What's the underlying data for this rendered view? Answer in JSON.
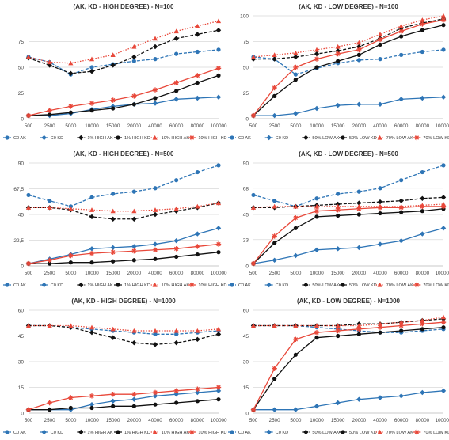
{
  "chart_data": [
    {
      "type": "line",
      "title": "(AK, KD - HIGH DEGREE) - N=100",
      "categories": [
        "500",
        "2500",
        "5000",
        "10000",
        "15000",
        "20000",
        "40000",
        "60000",
        "80000",
        "100000"
      ],
      "ylim": [
        0,
        100
      ],
      "yticks": [
        "0",
        "25",
        "50",
        "75"
      ],
      "ytick_values": [
        0,
        25,
        50,
        75
      ],
      "grid": true,
      "legend_position": "bottom",
      "series": [
        {
          "name": "C0 AK",
          "color": "#2e75b6",
          "dash": "dash",
          "marker": "circle",
          "values": [
            60,
            55,
            43,
            50,
            53,
            56,
            58,
            63,
            65,
            67
          ]
        },
        {
          "name": "C0 KD",
          "color": "#2e75b6",
          "dash": "solid",
          "marker": "diamond",
          "values": [
            3,
            3,
            5,
            9,
            12,
            14,
            15,
            19,
            20,
            21
          ]
        },
        {
          "name": "1% HIGH AK",
          "color": "#111111",
          "dash": "dash",
          "marker": "diamond",
          "values": [
            59,
            52,
            44,
            46,
            52,
            60,
            70,
            78,
            82,
            86
          ]
        },
        {
          "name": "1% HIGH KD",
          "color": "#111111",
          "dash": "solid",
          "marker": "circle",
          "values": [
            3,
            4,
            6,
            8,
            10,
            14,
            20,
            27,
            35,
            42
          ]
        },
        {
          "name": "10% HIGH AK",
          "color": "#e8483a",
          "dash": "dot",
          "marker": "triangle",
          "values": [
            60,
            55,
            54,
            58,
            62,
            70,
            78,
            85,
            90,
            95
          ]
        },
        {
          "name": "10% HIGH KD",
          "color": "#e8483a",
          "dash": "solid",
          "marker": "star",
          "values": [
            3,
            8,
            12,
            15,
            18,
            22,
            28,
            35,
            42,
            49
          ]
        }
      ]
    },
    {
      "type": "line",
      "title": "(AK, KD - LOW DEGREE) - N=100",
      "categories": [
        "500",
        "2500",
        "5000",
        "10000",
        "15000",
        "20000",
        "40000",
        "60000",
        "80000",
        "100000"
      ],
      "ylim": [
        0,
        100
      ],
      "yticks": [
        "0",
        "25",
        "50",
        "75",
        "100"
      ],
      "ytick_values": [
        0,
        25,
        50,
        75,
        100
      ],
      "grid": true,
      "legend_position": "bottom",
      "series": [
        {
          "name": "C0 AK",
          "color": "#2e75b6",
          "dash": "dash",
          "marker": "circle",
          "values": [
            60,
            58,
            43,
            49,
            54,
            57,
            58,
            62,
            65,
            67
          ]
        },
        {
          "name": "C0 KD",
          "color": "#2e75b6",
          "dash": "solid",
          "marker": "diamond",
          "values": [
            3,
            3,
            5,
            10,
            13,
            14,
            14,
            19,
            20,
            21
          ]
        },
        {
          "name": "50% LOW AK",
          "color": "#111111",
          "dash": "dash",
          "marker": "diamond",
          "values": [
            58,
            58,
            60,
            63,
            66,
            70,
            78,
            88,
            93,
            97
          ]
        },
        {
          "name": "50% LOW KD",
          "color": "#111111",
          "dash": "solid",
          "marker": "circle",
          "values": [
            3,
            22,
            38,
            50,
            56,
            62,
            72,
            80,
            86,
            91
          ]
        },
        {
          "name": "70% LOW AK",
          "color": "#e8483a",
          "dash": "dot",
          "marker": "triangle",
          "values": [
            60,
            62,
            64,
            67,
            70,
            74,
            82,
            90,
            96,
            100
          ]
        },
        {
          "name": "70% LOW KD",
          "color": "#e8483a",
          "dash": "solid",
          "marker": "star",
          "values": [
            3,
            30,
            50,
            58,
            63,
            67,
            77,
            85,
            92,
            96
          ]
        }
      ]
    },
    {
      "type": "line",
      "title": "(AK, KD - HIGH DEGREE) - N=500",
      "categories": [
        "500",
        "2500",
        "5000",
        "10000",
        "15000",
        "20000",
        "40000",
        "60000",
        "80000",
        "100000"
      ],
      "ylim": [
        0,
        90
      ],
      "yticks": [
        "0",
        "22,5",
        "45",
        "67,5",
        "90"
      ],
      "ytick_values": [
        0,
        22.5,
        45,
        67.5,
        90
      ],
      "grid": true,
      "legend_position": "bottom",
      "series": [
        {
          "name": "C0 AK",
          "color": "#2e75b6",
          "dash": "dash",
          "marker": "circle",
          "values": [
            62,
            57,
            52,
            60,
            63,
            65,
            68,
            75,
            82,
            88
          ]
        },
        {
          "name": "C0 KD",
          "color": "#2e75b6",
          "dash": "solid",
          "marker": "diamond",
          "values": [
            2,
            6,
            10,
            15,
            16,
            17,
            19,
            22,
            28,
            33
          ]
        },
        {
          "name": "1% HIGH AK",
          "color": "#111111",
          "dash": "dash",
          "marker": "diamond",
          "values": [
            51,
            51,
            49,
            43,
            41,
            41,
            45,
            48,
            51,
            55
          ]
        },
        {
          "name": "1% HIGH KD",
          "color": "#111111",
          "dash": "solid",
          "marker": "circle",
          "values": [
            2,
            2,
            3,
            3,
            4,
            5,
            6,
            8,
            10,
            12
          ]
        },
        {
          "name": "10% HIGH AK",
          "color": "#e8483a",
          "dash": "dot",
          "marker": "triangle",
          "values": [
            51,
            51,
            50,
            49,
            48,
            48,
            49,
            50,
            52,
            55
          ]
        },
        {
          "name": "10% HIGH KD",
          "color": "#e8483a",
          "dash": "solid",
          "marker": "star",
          "values": [
            2,
            5,
            9,
            11,
            12,
            13,
            14,
            15,
            17,
            19
          ]
        }
      ]
    },
    {
      "type": "line",
      "title": "(AK, KD - LOW DEGREE) - N=500",
      "categories": [
        "500",
        "2500",
        "5000",
        "10000",
        "15000",
        "20000",
        "40000",
        "60000",
        "80000",
        "100000"
      ],
      "ylim": [
        0,
        90
      ],
      "yticks": [
        "0",
        "23",
        "45",
        "68",
        "90"
      ],
      "ytick_values": [
        0,
        23,
        45,
        68,
        90
      ],
      "grid": true,
      "legend_position": "bottom",
      "series": [
        {
          "name": "C0 AK",
          "color": "#2e75b6",
          "dash": "dash",
          "marker": "circle",
          "values": [
            62,
            57,
            52,
            59,
            63,
            65,
            68,
            75,
            82,
            88
          ]
        },
        {
          "name": "C0 KD",
          "color": "#2e75b6",
          "dash": "solid",
          "marker": "diamond",
          "values": [
            2,
            5,
            9,
            14,
            15,
            16,
            19,
            22,
            28,
            33
          ]
        },
        {
          "name": "50% LOW AK",
          "color": "#111111",
          "dash": "dash",
          "marker": "diamond",
          "values": [
            51,
            51,
            52,
            53,
            54,
            55,
            56,
            57,
            59,
            60
          ]
        },
        {
          "name": "50% LOW KD",
          "color": "#111111",
          "dash": "solid",
          "marker": "circle",
          "values": [
            2,
            20,
            33,
            43,
            44,
            45,
            46,
            47,
            48,
            50
          ]
        },
        {
          "name": "70% LOW AK",
          "color": "#e8483a",
          "dash": "dot",
          "marker": "triangle",
          "values": [
            51,
            52,
            52,
            52,
            52,
            52,
            52,
            52,
            53,
            54
          ]
        },
        {
          "name": "70% LOW KD",
          "color": "#e8483a",
          "dash": "solid",
          "marker": "star",
          "values": [
            2,
            26,
            42,
            48,
            49,
            50,
            51,
            51,
            52,
            52
          ]
        }
      ]
    },
    {
      "type": "line",
      "title": "(AK, KD - HIGH DEGREE) - N=1000",
      "categories": [
        "500",
        "2500",
        "5000",
        "10000",
        "15000",
        "20000",
        "40000",
        "60000",
        "80000",
        "100000"
      ],
      "ylim": [
        0,
        60
      ],
      "yticks": [
        "0",
        "15",
        "30",
        "45",
        "60"
      ],
      "ytick_values": [
        0,
        15,
        30,
        45,
        60
      ],
      "grid": true,
      "legend_position": "bottom",
      "series": [
        {
          "name": "C0 AK",
          "color": "#2e75b6",
          "dash": "dash",
          "marker": "circle",
          "values": [
            51,
            51,
            50,
            49,
            48,
            47,
            46,
            46,
            47,
            48
          ]
        },
        {
          "name": "C0 KD",
          "color": "#2e75b6",
          "dash": "solid",
          "marker": "diamond",
          "values": [
            2,
            2,
            2,
            5,
            7,
            8,
            10,
            11,
            12,
            13
          ]
        },
        {
          "name": "1% HIGH AK",
          "color": "#111111",
          "dash": "dash",
          "marker": "diamond",
          "values": [
            51,
            51,
            50,
            47,
            44,
            41,
            40,
            41,
            43,
            46
          ]
        },
        {
          "name": "1% HIGH KD",
          "color": "#111111",
          "dash": "solid",
          "marker": "circle",
          "values": [
            2,
            2,
            3,
            3,
            4,
            4,
            5,
            6,
            7,
            8
          ]
        },
        {
          "name": "10% HIGH AK",
          "color": "#e8483a",
          "dash": "dot",
          "marker": "triangle",
          "values": [
            51,
            51,
            51,
            50,
            49,
            48,
            48,
            48,
            48,
            49
          ]
        },
        {
          "name": "10% HIGH KD",
          "color": "#e8483a",
          "dash": "solid",
          "marker": "star",
          "values": [
            2,
            6,
            9,
            10,
            11,
            11,
            12,
            13,
            14,
            15
          ]
        }
      ]
    },
    {
      "type": "line",
      "title": "(AK, KD - LOW DEGREE) - N=1000",
      "categories": [
        "500",
        "2500",
        "5000",
        "10000",
        "15000",
        "20000",
        "40000",
        "60000",
        "80000",
        "100000"
      ],
      "ylim": [
        0,
        60
      ],
      "yticks": [
        "0",
        "15",
        "30",
        "45",
        "60"
      ],
      "ytick_values": [
        0,
        15,
        30,
        45,
        60
      ],
      "grid": true,
      "legend_position": "bottom",
      "series": [
        {
          "name": "C0 AK",
          "color": "#2e75b6",
          "dash": "dash",
          "marker": "circle",
          "values": [
            51,
            51,
            51,
            50,
            49,
            48,
            47,
            47,
            48,
            49
          ]
        },
        {
          "name": "C0 KD",
          "color": "#2e75b6",
          "dash": "solid",
          "marker": "diamond",
          "values": [
            2,
            2,
            2,
            4,
            6,
            8,
            9,
            10,
            12,
            13
          ]
        },
        {
          "name": "50% LOW AK",
          "color": "#111111",
          "dash": "dash",
          "marker": "diamond",
          "values": [
            51,
            51,
            51,
            51,
            51,
            52,
            52,
            53,
            54,
            55
          ]
        },
        {
          "name": "50% LOW KD",
          "color": "#111111",
          "dash": "solid",
          "marker": "circle",
          "values": [
            2,
            20,
            34,
            44,
            45,
            46,
            47,
            48,
            49,
            50
          ]
        },
        {
          "name": "70% LOW AK",
          "color": "#e8483a",
          "dash": "dot",
          "marker": "triangle",
          "values": [
            51,
            51,
            51,
            51,
            51,
            51,
            52,
            53,
            54,
            56
          ]
        },
        {
          "name": "70% LOW KD",
          "color": "#e8483a",
          "dash": "solid",
          "marker": "star",
          "values": [
            2,
            26,
            43,
            47,
            48,
            49,
            50,
            51,
            52,
            53
          ]
        }
      ]
    }
  ]
}
